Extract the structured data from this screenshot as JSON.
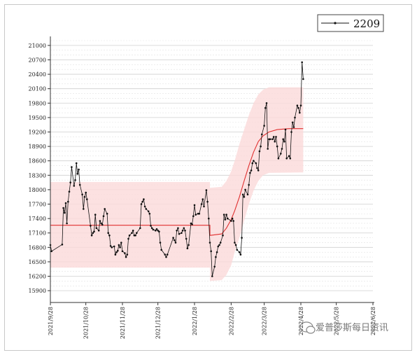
{
  "chart_data": {
    "type": "line",
    "legend": {
      "label": "2209",
      "placement": "top-right"
    },
    "yticks": [
      15900,
      16200,
      16500,
      16800,
      17100,
      17400,
      17700,
      18000,
      18300,
      18600,
      18900,
      19200,
      19500,
      19800,
      20100,
      20400,
      20700,
      21000
    ],
    "ylim": [
      15800,
      21100
    ],
    "xticks": [
      "2021/9/28",
      "2021/10/28",
      "2021/11/28",
      "2021/12/28",
      "2022/1/28",
      "2022/2/28",
      "2022/3/28",
      "2022/4/28",
      "2022/5/28",
      "2022/6/28"
    ],
    "xlim": [
      "2021/9/28",
      "2022/6/28"
    ],
    "grid": true,
    "series": [
      {
        "name": "2209",
        "marker": "dot",
        "color": "#111111",
        "points": [
          [
            "2021/9/28",
            16850
          ],
          [
            "2021/9/29",
            16720
          ],
          [
            "2021/10/8",
            16860
          ],
          [
            "2021/10/9",
            17620
          ],
          [
            "2021/10/10",
            17520
          ],
          [
            "2021/10/11",
            17720
          ],
          [
            "2021/10/12",
            17300
          ],
          [
            "2021/10/13",
            17750
          ],
          [
            "2021/10/14",
            17960
          ],
          [
            "2021/10/15",
            18150
          ],
          [
            "2021/10/16",
            18470
          ],
          [
            "2021/10/18",
            18080
          ],
          [
            "2021/10/19",
            18200
          ],
          [
            "2021/10/20",
            18550
          ],
          [
            "2021/10/21",
            18330
          ],
          [
            "2021/10/22",
            18420
          ],
          [
            "2021/10/23",
            18100
          ],
          [
            "2021/10/25",
            17900
          ],
          [
            "2021/10/26",
            17600
          ],
          [
            "2021/10/27",
            17850
          ],
          [
            "2021/10/28",
            17940
          ],
          [
            "2021/10/29",
            17800
          ],
          [
            "2021/11/1",
            17250
          ],
          [
            "2021/11/2",
            17050
          ],
          [
            "2021/11/3",
            17100
          ],
          [
            "2021/11/4",
            17130
          ],
          [
            "2021/11/5",
            17480
          ],
          [
            "2021/11/6",
            17200
          ],
          [
            "2021/11/8",
            17150
          ],
          [
            "2021/11/9",
            17350
          ],
          [
            "2021/11/10",
            17300
          ],
          [
            "2021/11/11",
            17270
          ],
          [
            "2021/11/12",
            17450
          ],
          [
            "2021/11/13",
            17600
          ],
          [
            "2021/11/15",
            17500
          ],
          [
            "2021/11/16",
            17100
          ],
          [
            "2021/11/17",
            17050
          ],
          [
            "2021/11/18",
            16830
          ],
          [
            "2021/11/19",
            16800
          ],
          [
            "2021/11/21",
            16820
          ],
          [
            "2021/11/22",
            16650
          ],
          [
            "2021/11/23",
            16700
          ],
          [
            "2021/11/24",
            16730
          ],
          [
            "2021/11/25",
            16850
          ],
          [
            "2021/11/26",
            16800
          ],
          [
            "2021/11/27",
            16900
          ],
          [
            "2021/11/28",
            16720
          ],
          [
            "2021/11/30",
            16680
          ],
          [
            "2021/12/1",
            16600
          ],
          [
            "2021/12/2",
            16650
          ],
          [
            "2021/12/3",
            16980
          ],
          [
            "2021/12/4",
            17050
          ],
          [
            "2021/12/6",
            17100
          ],
          [
            "2021/12/7",
            17150
          ],
          [
            "2021/12/8",
            17050
          ],
          [
            "2021/12/9",
            17050
          ],
          [
            "2021/12/10",
            17100
          ],
          [
            "2021/12/13",
            17200
          ],
          [
            "2021/12/14",
            17700
          ],
          [
            "2021/12/15",
            17750
          ],
          [
            "2021/12/16",
            17800
          ],
          [
            "2021/12/17",
            17650
          ],
          [
            "2021/12/18",
            17600
          ],
          [
            "2021/12/20",
            17550
          ],
          [
            "2021/12/21",
            17500
          ],
          [
            "2021/12/22",
            17250
          ],
          [
            "2021/12/23",
            17200
          ],
          [
            "2021/12/24",
            17170
          ],
          [
            "2021/12/26",
            17150
          ],
          [
            "2021/12/27",
            17180
          ],
          [
            "2021/12/28",
            17150
          ],
          [
            "2021/12/29",
            17130
          ],
          [
            "2021/12/30",
            16900
          ],
          [
            "2021/12/31",
            16750
          ],
          [
            "2022/1/3",
            16650
          ],
          [
            "2022/1/4",
            16600
          ],
          [
            "2022/1/5",
            16650
          ],
          [
            "2022/1/10",
            17000
          ],
          [
            "2022/1/11",
            16950
          ],
          [
            "2022/1/12",
            16900
          ],
          [
            "2022/1/13",
            17150
          ],
          [
            "2022/1/14",
            17200
          ],
          [
            "2022/1/15",
            17080
          ],
          [
            "2022/1/17",
            17100
          ],
          [
            "2022/1/18",
            17150
          ],
          [
            "2022/1/19",
            17200
          ],
          [
            "2022/1/20",
            17150
          ],
          [
            "2022/1/21",
            16980
          ],
          [
            "2022/1/22",
            16780
          ],
          [
            "2022/1/23",
            16850
          ],
          [
            "2022/1/25",
            17300
          ],
          [
            "2022/1/26",
            17280
          ],
          [
            "2022/1/27",
            17450
          ],
          [
            "2022/1/28",
            17680
          ],
          [
            "2022/1/29",
            17480
          ],
          [
            "2022/1/31",
            17500
          ],
          [
            "2022/2/1",
            17500
          ],
          [
            "2022/2/3",
            17700
          ],
          [
            "2022/2/4",
            17800
          ],
          [
            "2022/2/5",
            17650
          ],
          [
            "2022/2/7",
            17990
          ],
          [
            "2022/2/8",
            17750
          ],
          [
            "2022/2/9",
            17400
          ],
          [
            "2022/2/10",
            16900
          ],
          [
            "2022/2/11",
            16720
          ],
          [
            "2022/2/12",
            16200
          ],
          [
            "2022/2/14",
            16400
          ],
          [
            "2022/2/15",
            16600
          ],
          [
            "2022/2/16",
            16700
          ],
          [
            "2022/2/17",
            16820
          ],
          [
            "2022/2/18",
            16850
          ],
          [
            "2022/2/19",
            16900
          ],
          [
            "2022/2/21",
            17050
          ],
          [
            "2022/2/22",
            17480
          ],
          [
            "2022/2/23",
            17380
          ],
          [
            "2022/2/24",
            17480
          ],
          [
            "2022/2/25",
            17400
          ],
          [
            "2022/2/28",
            17350
          ],
          [
            "2022/3/1",
            17400
          ],
          [
            "2022/3/2",
            17350
          ],
          [
            "2022/3/3",
            16900
          ],
          [
            "2022/3/4",
            16850
          ],
          [
            "2022/3/5",
            16750
          ],
          [
            "2022/3/7",
            16700
          ],
          [
            "2022/3/8",
            16650
          ],
          [
            "2022/3/9",
            17000
          ],
          [
            "2022/3/10",
            17900
          ],
          [
            "2022/3/11",
            17850
          ],
          [
            "2022/3/12",
            18000
          ],
          [
            "2022/3/14",
            17900
          ],
          [
            "2022/3/15",
            18100
          ],
          [
            "2022/3/16",
            18350
          ],
          [
            "2022/3/17",
            18400
          ],
          [
            "2022/3/18",
            18550
          ],
          [
            "2022/3/19",
            18600
          ],
          [
            "2022/3/21",
            18550
          ],
          [
            "2022/3/22",
            18450
          ],
          [
            "2022/3/23",
            18400
          ],
          [
            "2022/3/24",
            18800
          ],
          [
            "2022/3/25",
            18900
          ],
          [
            "2022/3/26",
            19150
          ],
          [
            "2022/3/28",
            19330
          ],
          [
            "2022/3/29",
            19700
          ],
          [
            "2022/3/30",
            19800
          ],
          [
            "2022/3/31",
            18850
          ],
          [
            "2022/4/1",
            19050
          ],
          [
            "2022/4/2",
            19050
          ],
          [
            "2022/4/4",
            19050
          ],
          [
            "2022/4/5",
            19100
          ],
          [
            "2022/4/6",
            19000
          ],
          [
            "2022/4/7",
            19100
          ],
          [
            "2022/4/8",
            18900
          ],
          [
            "2022/4/9",
            18650
          ],
          [
            "2022/4/11",
            18750
          ],
          [
            "2022/4/12",
            18850
          ],
          [
            "2022/4/13",
            19050
          ],
          [
            "2022/4/14",
            19000
          ],
          [
            "2022/4/15",
            19250
          ],
          [
            "2022/4/16",
            18650
          ],
          [
            "2022/4/18",
            18700
          ],
          [
            "2022/4/19",
            18650
          ],
          [
            "2022/4/20",
            19200
          ],
          [
            "2022/4/21",
            19400
          ],
          [
            "2022/4/22",
            19300
          ],
          [
            "2022/4/23",
            19500
          ],
          [
            "2022/4/25",
            19750
          ],
          [
            "2022/4/26",
            19700
          ],
          [
            "2022/4/27",
            19600
          ],
          [
            "2022/4/28",
            19750
          ],
          [
            "2022/4/29",
            20650
          ],
          [
            "2022/4/30",
            20300
          ]
        ]
      }
    ],
    "fit_line": {
      "color": "#e03030",
      "points": [
        [
          "2021/9/28",
          17260
        ],
        [
          "2022/2/10",
          17260
        ],
        [
          "2022/2/10",
          17050
        ],
        [
          "2022/2/20",
          17080
        ],
        [
          "2022/2/24",
          17200
        ],
        [
          "2022/2/28",
          17380
        ],
        [
          "2022/3/3",
          17560
        ],
        [
          "2022/3/7",
          17850
        ],
        [
          "2022/3/11",
          18180
        ],
        [
          "2022/3/15",
          18500
        ],
        [
          "2022/3/19",
          18780
        ],
        [
          "2022/3/23",
          19000
        ],
        [
          "2022/3/27",
          19120
        ],
        [
          "2022/4/1",
          19200
        ],
        [
          "2022/4/8",
          19250
        ],
        [
          "2022/4/18",
          19270
        ],
        [
          "2022/4/30",
          19270
        ]
      ]
    },
    "confidence_band": {
      "color": "#fbd9d9",
      "upper": [
        [
          "2021/9/28",
          18160
        ],
        [
          "2022/2/10",
          18160
        ],
        [
          "2022/2/10",
          18040
        ],
        [
          "2022/2/20",
          18060
        ],
        [
          "2022/2/24",
          18180
        ],
        [
          "2022/2/28",
          18380
        ],
        [
          "2022/3/3",
          18600
        ],
        [
          "2022/3/7",
          18950
        ],
        [
          "2022/3/11",
          19250
        ],
        [
          "2022/3/15",
          19550
        ],
        [
          "2022/3/19",
          19800
        ],
        [
          "2022/3/23",
          19980
        ],
        [
          "2022/3/27",
          20080
        ],
        [
          "2022/4/1",
          20130
        ],
        [
          "2022/4/30",
          20130
        ]
      ],
      "lower": [
        [
          "2021/9/28",
          16380
        ],
        [
          "2022/2/10",
          16380
        ],
        [
          "2022/2/10",
          16100
        ],
        [
          "2022/2/20",
          16120
        ],
        [
          "2022/2/24",
          16230
        ],
        [
          "2022/2/28",
          16430
        ],
        [
          "2022/3/3",
          16700
        ],
        [
          "2022/3/7",
          17000
        ],
        [
          "2022/3/11",
          17350
        ],
        [
          "2022/3/15",
          17700
        ],
        [
          "2022/3/19",
          17980
        ],
        [
          "2022/3/23",
          18180
        ],
        [
          "2022/3/27",
          18300
        ],
        [
          "2022/4/1",
          18350
        ],
        [
          "2022/4/30",
          18360
        ]
      ]
    }
  },
  "watermark": {
    "text": "爱普莎斯每日资讯",
    "icon": "chat-bubble-icon"
  }
}
